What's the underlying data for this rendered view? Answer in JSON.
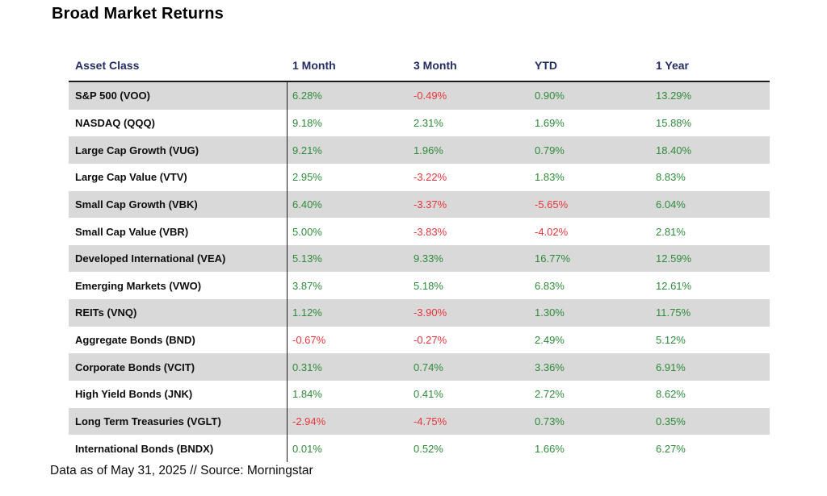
{
  "page": {
    "title": "Broad Market Returns",
    "footer": "Data as of May 31, 2025 // Source: Morningstar"
  },
  "colors": {
    "positive": "#2e8b3a",
    "negative": "#e8353b",
    "header_text": "#242d62",
    "row_stripe": "#d9d9d9",
    "divider_line": "#1a1a1a"
  },
  "table": {
    "headers": [
      "Asset Class",
      "1 Month",
      "3 Month",
      "YTD",
      "1 Year"
    ],
    "rows": [
      {
        "asset_class": "S&P 500 (VOO)",
        "values": [
          "6.28%",
          "-0.49%",
          "0.90%",
          "13.29%"
        ]
      },
      {
        "asset_class": "NASDAQ (QQQ)",
        "values": [
          "9.18%",
          "2.31%",
          "1.69%",
          "15.88%"
        ]
      },
      {
        "asset_class": "Large Cap Growth (VUG)",
        "values": [
          "9.21%",
          "1.96%",
          "0.79%",
          "18.40%"
        ]
      },
      {
        "asset_class": "Large Cap Value (VTV)",
        "values": [
          "2.95%",
          "-3.22%",
          "1.83%",
          "8.83%"
        ]
      },
      {
        "asset_class": "Small Cap Growth (VBK)",
        "values": [
          "6.40%",
          "-3.37%",
          "-5.65%",
          "6.04%"
        ]
      },
      {
        "asset_class": "Small Cap Value (VBR)",
        "values": [
          "5.00%",
          "-3.83%",
          "-4.02%",
          "2.81%"
        ]
      },
      {
        "asset_class": "Developed International (VEA)",
        "values": [
          "5.13%",
          "9.33%",
          "16.77%",
          "12.59%"
        ]
      },
      {
        "asset_class": "Emerging Markets (VWO)",
        "values": [
          "3.87%",
          "5.18%",
          "6.83%",
          "12.61%"
        ]
      },
      {
        "asset_class": "REITs (VNQ)",
        "values": [
          "1.12%",
          "-3.90%",
          "1.30%",
          "11.75%"
        ]
      },
      {
        "asset_class": "Aggregate Bonds (BND)",
        "values": [
          "-0.67%",
          "-0.27%",
          "2.49%",
          "5.12%"
        ]
      },
      {
        "asset_class": "Corporate Bonds (VCIT)",
        "values": [
          "0.31%",
          "0.74%",
          "3.36%",
          "6.91%"
        ]
      },
      {
        "asset_class": "High Yield Bonds (JNK)",
        "values": [
          "1.84%",
          "0.41%",
          "2.72%",
          "8.62%"
        ]
      },
      {
        "asset_class": "Long Term Treasuries (VGLT)",
        "values": [
          "-2.94%",
          "-4.75%",
          "0.73%",
          "0.35%"
        ]
      },
      {
        "asset_class": "International Bonds (BNDX)",
        "values": [
          "0.01%",
          "0.52%",
          "1.66%",
          "6.27%"
        ]
      }
    ]
  },
  "chart_data": {
    "type": "table",
    "title": "Broad Market Returns",
    "columns": [
      "Asset Class",
      "1 Month",
      "3 Month",
      "YTD",
      "1 Year"
    ],
    "units": "percent",
    "rows": [
      [
        "S&P 500 (VOO)",
        6.28,
        -0.49,
        0.9,
        13.29
      ],
      [
        "NASDAQ (QQQ)",
        9.18,
        2.31,
        1.69,
        15.88
      ],
      [
        "Large Cap Growth (VUG)",
        9.21,
        1.96,
        0.79,
        18.4
      ],
      [
        "Large Cap Value (VTV)",
        2.95,
        -3.22,
        1.83,
        8.83
      ],
      [
        "Small Cap Growth (VBK)",
        6.4,
        -3.37,
        -5.65,
        6.04
      ],
      [
        "Small Cap Value (VBR)",
        5.0,
        -3.83,
        -4.02,
        2.81
      ],
      [
        "Developed International (VEA)",
        5.13,
        9.33,
        16.77,
        12.59
      ],
      [
        "Emerging Markets (VWO)",
        3.87,
        5.18,
        6.83,
        12.61
      ],
      [
        "REITs (VNQ)",
        1.12,
        -3.9,
        1.3,
        11.75
      ],
      [
        "Aggregate Bonds (BND)",
        -0.67,
        -0.27,
        2.49,
        5.12
      ],
      [
        "Corporate Bonds (VCIT)",
        0.31,
        0.74,
        3.36,
        6.91
      ],
      [
        "High Yield Bonds (JNK)",
        1.84,
        0.41,
        2.72,
        8.62
      ],
      [
        "Long Term Treasuries (VGLT)",
        -2.94,
        -4.75,
        0.73,
        0.35
      ],
      [
        "International Bonds (BNDX)",
        0.01,
        0.52,
        1.66,
        6.27
      ]
    ],
    "value_color_rule": "negative values red, positive values green",
    "note": "Data as of May 31, 2025 // Source: Morningstar"
  }
}
